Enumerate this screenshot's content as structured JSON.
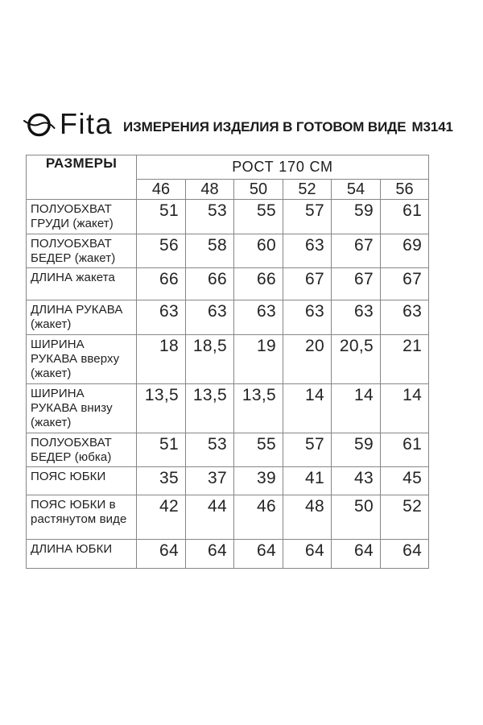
{
  "page": {
    "background": "#ffffff"
  },
  "header": {
    "logo_icon": "circle-orbit-logo",
    "brand": "Fita",
    "title": "ИЗМЕРЕНИЯ ИЗДЕЛИЯ В ГОТОВОМ ВИДЕ",
    "model": "М3141"
  },
  "colors": {
    "text": "#1c1c1c",
    "border": "#868686",
    "logo": "#111111",
    "background": "#ffffff"
  },
  "table": {
    "corner_label": "РАЗМЕРЫ",
    "group_header": "РОСТ 170 СМ",
    "sizes": [
      "46",
      "48",
      "50",
      "52",
      "54",
      "56"
    ],
    "rows": [
      {
        "label": "ПОЛУОБХВАТ ГРУДИ (жакет)",
        "values": [
          "51",
          "53",
          "55",
          "57",
          "59",
          "61"
        ]
      },
      {
        "label": "ПОЛУОБХВАТ БЕДЕР (жакет)",
        "values": [
          "56",
          "58",
          "60",
          "63",
          "67",
          "69"
        ]
      },
      {
        "label": "ДЛИНА жакета",
        "values": [
          "66",
          "66",
          "66",
          "67",
          "67",
          "67"
        ]
      },
      {
        "label": "ДЛИНА РУКАВА (жакет)",
        "values": [
          "63",
          "63",
          "63",
          "63",
          "63",
          "63"
        ]
      },
      {
        "label": "ШИРИНА РУКАВА вверху (жакет)",
        "values": [
          "18",
          "18,5",
          "19",
          "20",
          "20,5",
          "21"
        ]
      },
      {
        "label": "ШИРИНА РУКАВА внизу (жакет)",
        "values": [
          "13,5",
          "13,5",
          "13,5",
          "14",
          "14",
          "14"
        ]
      },
      {
        "label": "ПОЛУОБХВАТ БЕДЕР (юбка)",
        "values": [
          "51",
          "53",
          "55",
          "57",
          "59",
          "61"
        ]
      },
      {
        "label": "ПОЯС ЮБКИ",
        "values": [
          "35",
          "37",
          "39",
          "41",
          "43",
          "45"
        ]
      },
      {
        "label": "ПОЯС ЮБКИ в растянутом виде",
        "values": [
          "42",
          "44",
          "46",
          "48",
          "50",
          "52"
        ]
      },
      {
        "label": "ДЛИНА ЮБКИ",
        "values": [
          "64",
          "64",
          "64",
          "64",
          "64",
          "64"
        ]
      }
    ]
  }
}
